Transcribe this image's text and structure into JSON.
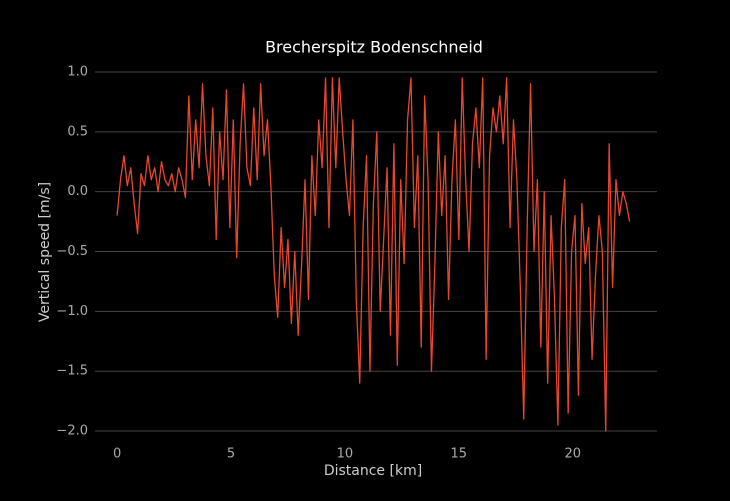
{
  "chart_data": {
    "type": "line",
    "title": "Brecherspitz Bodenschneid",
    "xlabel": "Distance [km]",
    "ylabel": "Vertical speed [m/s]",
    "xlim": [
      -0.97,
      23.7
    ],
    "ylim": [
      -2.1,
      1.1
    ],
    "xticks": [
      0,
      5,
      10,
      15,
      20
    ],
    "yticks": [
      {
        "value": 1,
        "label": "1.0"
      },
      {
        "value": 0.5,
        "label": "0.5"
      },
      {
        "value": 0,
        "label": "0.0"
      },
      {
        "value": -0.5,
        "label": "−0.5"
      },
      {
        "value": -1,
        "label": "−1.0"
      },
      {
        "value": -1.5,
        "label": "−1.5"
      },
      {
        "value": -2,
        "label": "−2.0"
      }
    ],
    "grid": true,
    "color": "#e8472f",
    "x": [
      0,
      0.15,
      0.3,
      0.45,
      0.6,
      0.75,
      0.9,
      1.05,
      1.2,
      1.35,
      1.5,
      1.65,
      1.8,
      1.95,
      2.1,
      2.25,
      2.4,
      2.55,
      2.7,
      2.85,
      3,
      3.15,
      3.3,
      3.45,
      3.6,
      3.75,
      3.9,
      4.05,
      4.2,
      4.35,
      4.5,
      4.65,
      4.8,
      4.95,
      5.1,
      5.25,
      5.4,
      5.55,
      5.7,
      5.85,
      6,
      6.15,
      6.3,
      6.45,
      6.6,
      6.75,
      6.9,
      7.05,
      7.2,
      7.35,
      7.5,
      7.65,
      7.8,
      7.95,
      8.1,
      8.25,
      8.4,
      8.55,
      8.7,
      8.85,
      9,
      9.15,
      9.3,
      9.45,
      9.6,
      9.75,
      9.9,
      10.05,
      10.2,
      10.35,
      10.5,
      10.65,
      10.8,
      10.95,
      11.1,
      11.25,
      11.4,
      11.55,
      11.7,
      11.85,
      12,
      12.15,
      12.3,
      12.45,
      12.6,
      12.75,
      12.9,
      13.05,
      13.2,
      13.35,
      13.5,
      13.65,
      13.8,
      13.95,
      14.1,
      14.25,
      14.4,
      14.55,
      14.7,
      14.85,
      15,
      15.15,
      15.3,
      15.45,
      15.6,
      15.75,
      15.9,
      16.05,
      16.2,
      16.35,
      16.5,
      16.65,
      16.8,
      16.95,
      17.1,
      17.25,
      17.4,
      17.55,
      17.7,
      17.85,
      18,
      18.15,
      18.3,
      18.45,
      18.6,
      18.75,
      18.9,
      19.05,
      19.2,
      19.35,
      19.5,
      19.65,
      19.8,
      19.95,
      20.1,
      20.25,
      20.4,
      20.55,
      20.7,
      20.85,
      21,
      21.15,
      21.3,
      21.45,
      21.6,
      21.75,
      21.9,
      22.05,
      22.2,
      22.35,
      22.5
    ],
    "values": [
      -0.2,
      0.1,
      0.3,
      0.05,
      0.2,
      -0.1,
      -0.35,
      0.15,
      0.05,
      0.3,
      0.1,
      0.2,
      0.0,
      0.25,
      0.1,
      0.05,
      0.15,
      0.0,
      0.2,
      0.1,
      -0.05,
      0.8,
      0.1,
      0.6,
      0.2,
      0.9,
      0.3,
      0.05,
      0.7,
      -0.4,
      0.5,
      0.1,
      0.85,
      -0.3,
      0.6,
      -0.55,
      0.4,
      0.9,
      0.2,
      0.05,
      0.7,
      0.1,
      0.9,
      0.3,
      0.6,
      0.05,
      -0.7,
      -1.05,
      -0.3,
      -0.8,
      -0.4,
      -1.1,
      -0.5,
      -1.2,
      -0.6,
      0.1,
      -0.9,
      0.3,
      -0.2,
      0.6,
      0.2,
      0.95,
      -0.3,
      0.95,
      0.2,
      0.95,
      0.5,
      0.1,
      -0.2,
      0.6,
      -0.9,
      -1.6,
      -0.3,
      0.3,
      -1.5,
      -0.1,
      0.5,
      -1.0,
      -0.4,
      0.2,
      -1.2,
      0.4,
      -1.45,
      0.1,
      -0.6,
      0.6,
      0.95,
      -0.3,
      0.3,
      -1.3,
      0.8,
      0.1,
      -1.5,
      -0.6,
      0.5,
      -0.2,
      0.3,
      -0.9,
      0.1,
      0.6,
      -0.4,
      0.95,
      0.1,
      -0.5,
      0.4,
      0.7,
      0.2,
      0.95,
      -1.4,
      0.3,
      0.7,
      0.5,
      0.8,
      0.4,
      0.95,
      -0.3,
      0.6,
      0.1,
      -0.8,
      -1.9,
      -0.3,
      0.9,
      -0.5,
      0.1,
      -1.3,
      0.0,
      -1.6,
      -0.2,
      -0.9,
      -1.95,
      -0.3,
      0.1,
      -1.85,
      -0.5,
      -0.2,
      -1.7,
      -0.1,
      -0.6,
      -0.3,
      -1.4,
      -0.7,
      -0.2,
      -0.5,
      -2.0,
      0.4,
      -0.8,
      0.1,
      -0.2,
      0.0,
      -0.1,
      -0.25
    ]
  }
}
